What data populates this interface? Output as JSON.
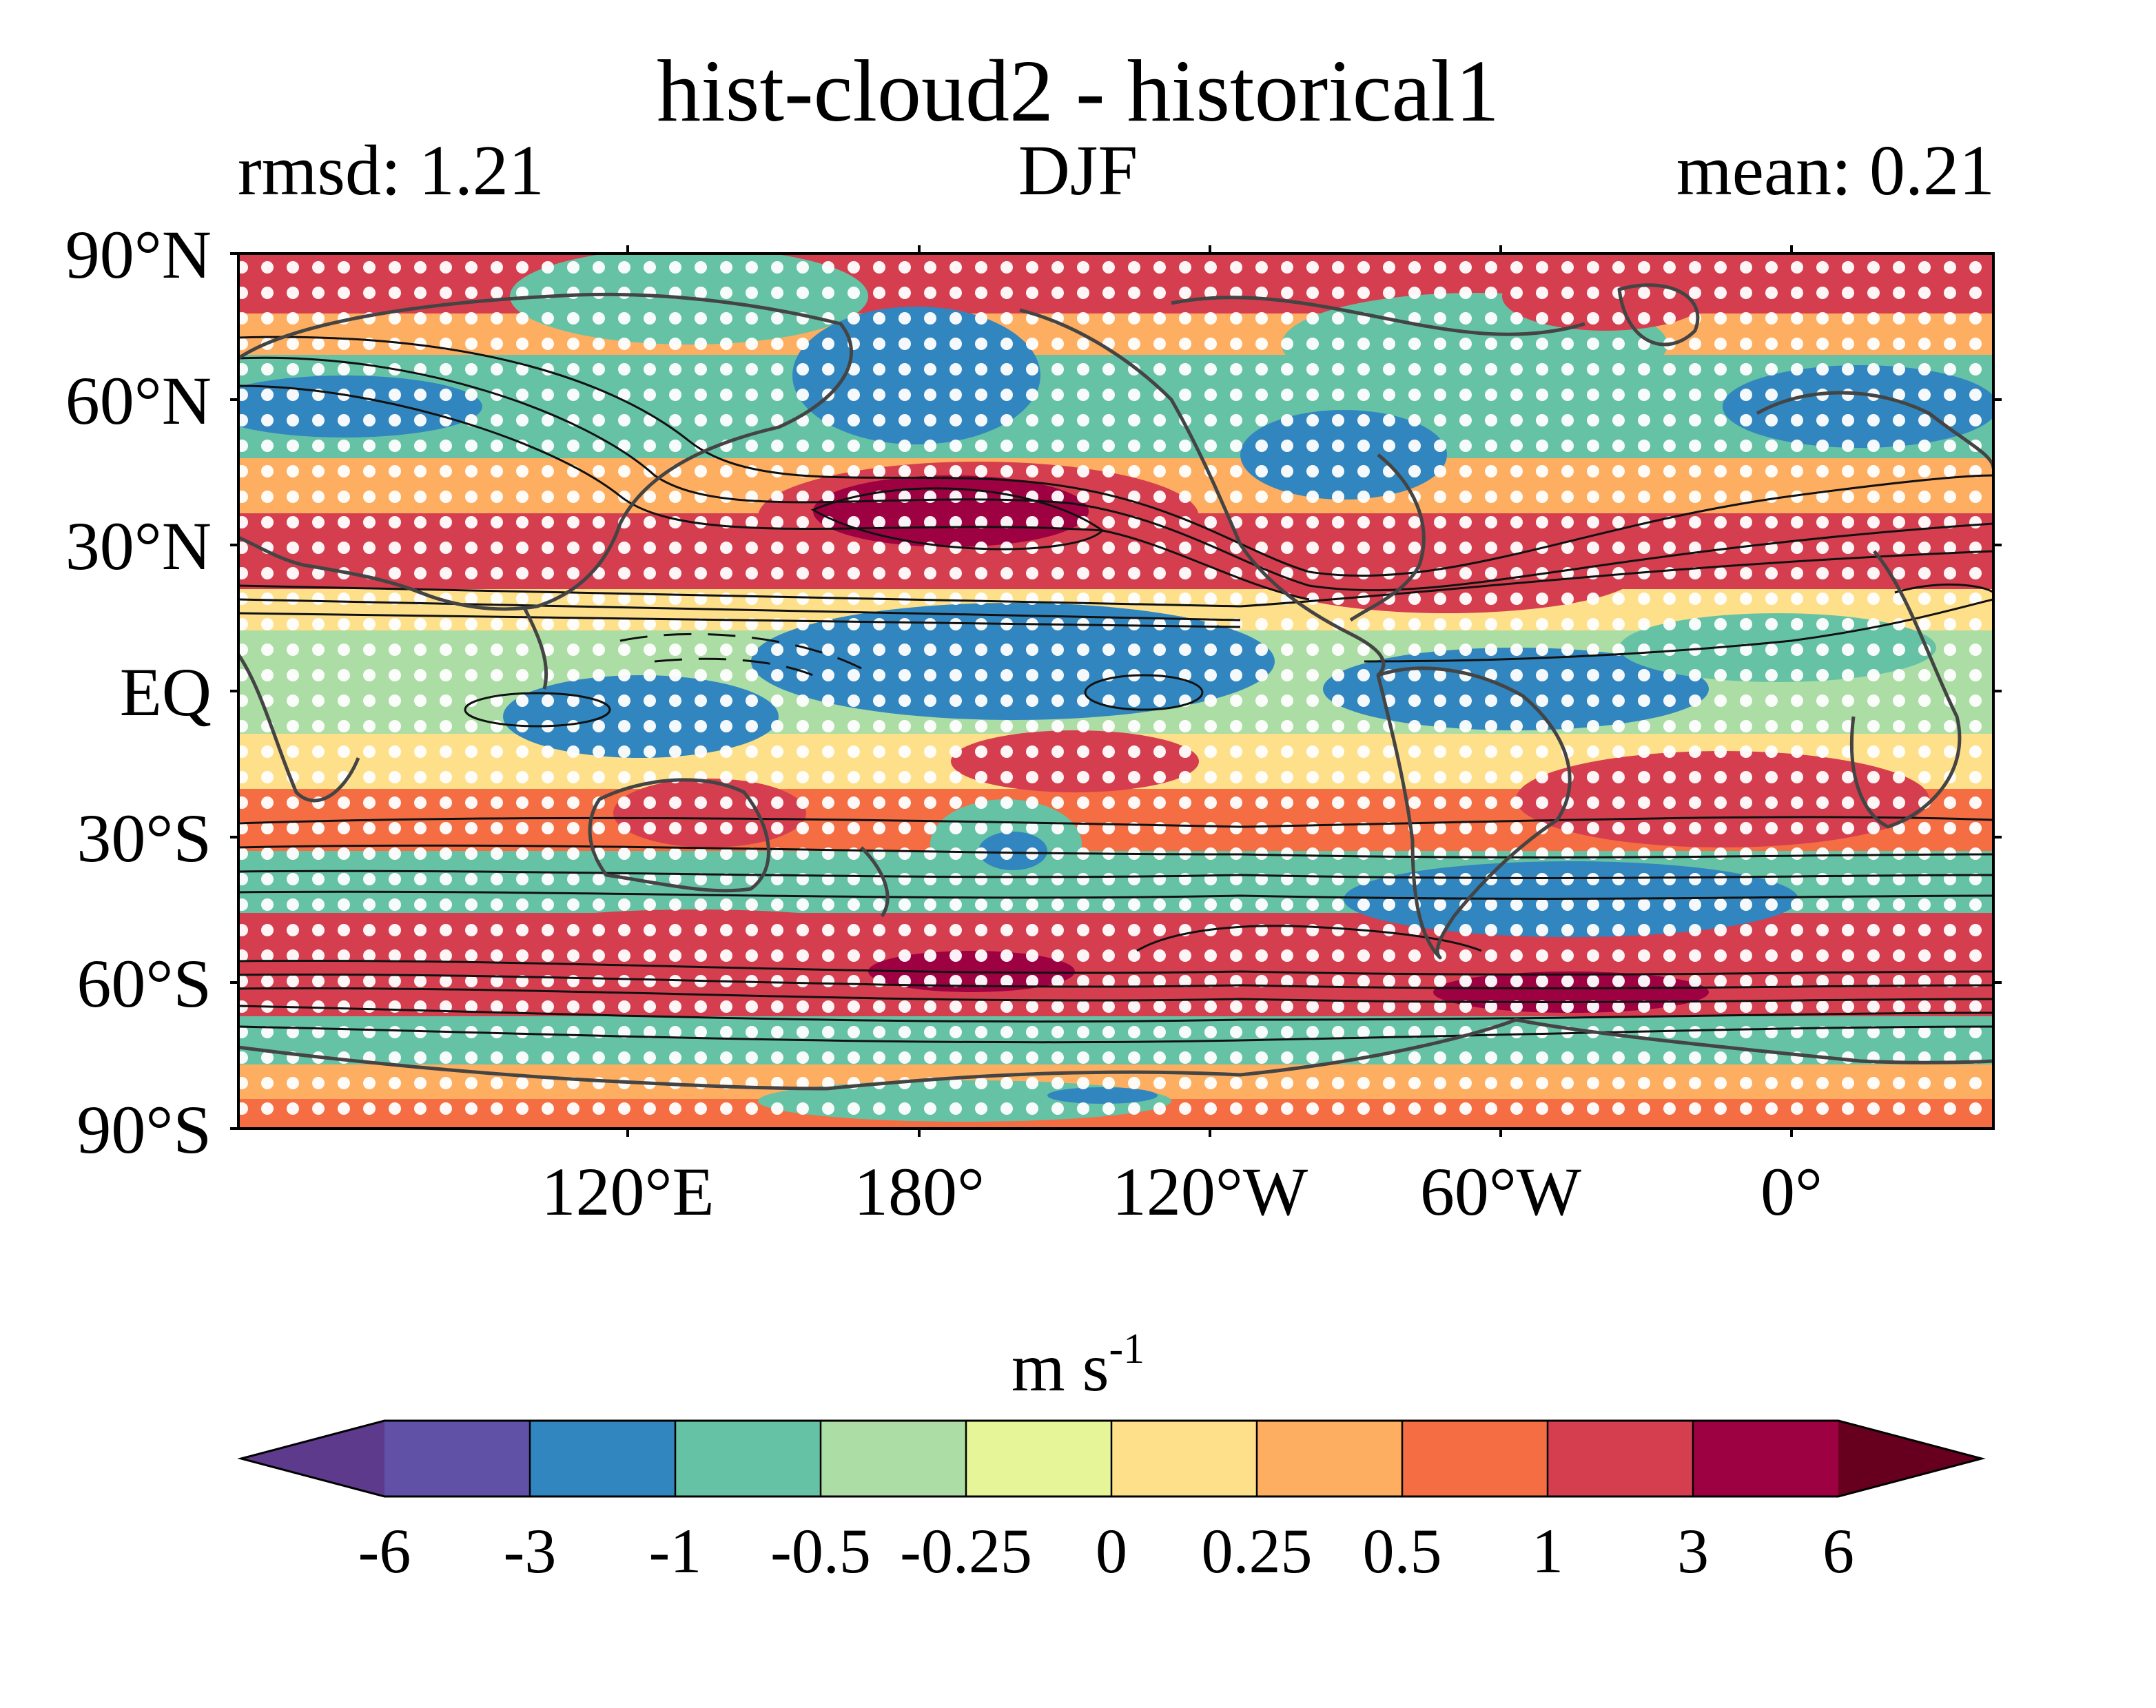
{
  "figure": {
    "title": "hist-cloud2 - historical1",
    "left_label": "rmsd: 1.21",
    "center_label": "DJF",
    "right_label": "mean: 0.21"
  },
  "axes": {
    "lat_ticks": [
      "90°N",
      "60°N",
      "30°N",
      "EQ",
      "30°S",
      "60°S",
      "90°S"
    ],
    "lon_ticks": [
      "120°E",
      "180°",
      "120°W",
      "60°W",
      "0°"
    ]
  },
  "colorbar": {
    "units_base": "m s",
    "units_exp": "-1",
    "tick_labels": [
      "-6",
      "-3",
      "-1",
      "-0.5",
      "-0.25",
      "0",
      "0.25",
      "0.5",
      "1",
      "3",
      "6"
    ],
    "colors": [
      "#5e3a8c",
      "#6050a6",
      "#3186bf",
      "#66c2a5",
      "#abdda4",
      "#e6f598",
      "#fee08b",
      "#fdae61",
      "#f46d43",
      "#d53e4f",
      "#9e0142",
      "#67001f"
    ]
  }
}
